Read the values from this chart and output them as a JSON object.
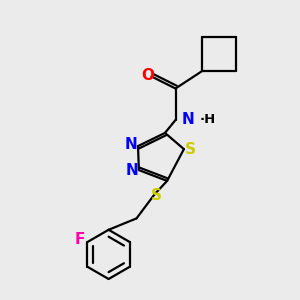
{
  "bg_color": "#ebebeb",
  "bond_color": "#000000",
  "bond_width": 1.6,
  "N_color": "#0000ff",
  "S_color": "#cccc00",
  "O_color": "#ff0000",
  "F_color": "#ff00aa",
  "figsize": [
    3.0,
    3.0
  ],
  "dpi": 100,
  "xlim": [
    0,
    10
  ],
  "ylim": [
    0,
    10
  ]
}
